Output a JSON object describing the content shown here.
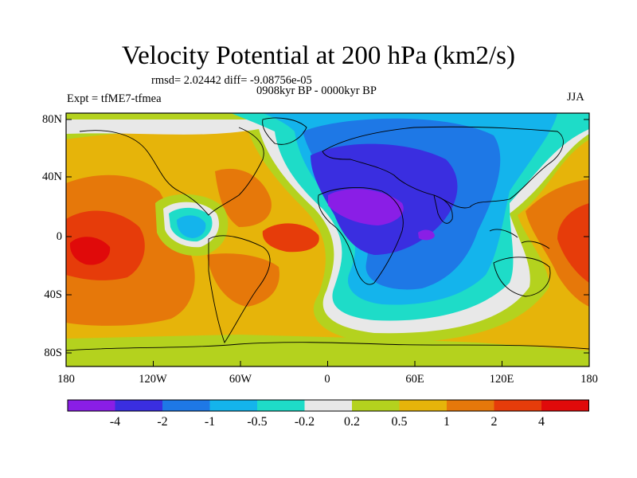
{
  "title": "Velocity Potential at 200 hPa (km2/s)",
  "stats": "rmsd= 2.02442 diff= -9.08756e-05",
  "experiment": "Expt = tfME7-tfmea",
  "period": "0908kyr BP - 0000kyr BP",
  "season": "JJA",
  "y_ticks": [
    "80N",
    "40N",
    "0",
    "40S",
    "80S"
  ],
  "x_ticks": [
    "180",
    "120W",
    "60W",
    "0",
    "60E",
    "120E",
    "180"
  ],
  "colorbar": {
    "labels": [
      "-4",
      "-2",
      "-1",
      "-0.5",
      "-0.2",
      "0.2",
      "0.5",
      "1",
      "2",
      "4"
    ],
    "colors": [
      "#8a1ee6",
      "#3a2ee0",
      "#1e78e6",
      "#14b4ec",
      "#1edcc8",
      "#e8e8e8",
      "#b4d21e",
      "#e6b40a",
      "#e6780a",
      "#e63c0a",
      "#e00a0a"
    ]
  }
}
